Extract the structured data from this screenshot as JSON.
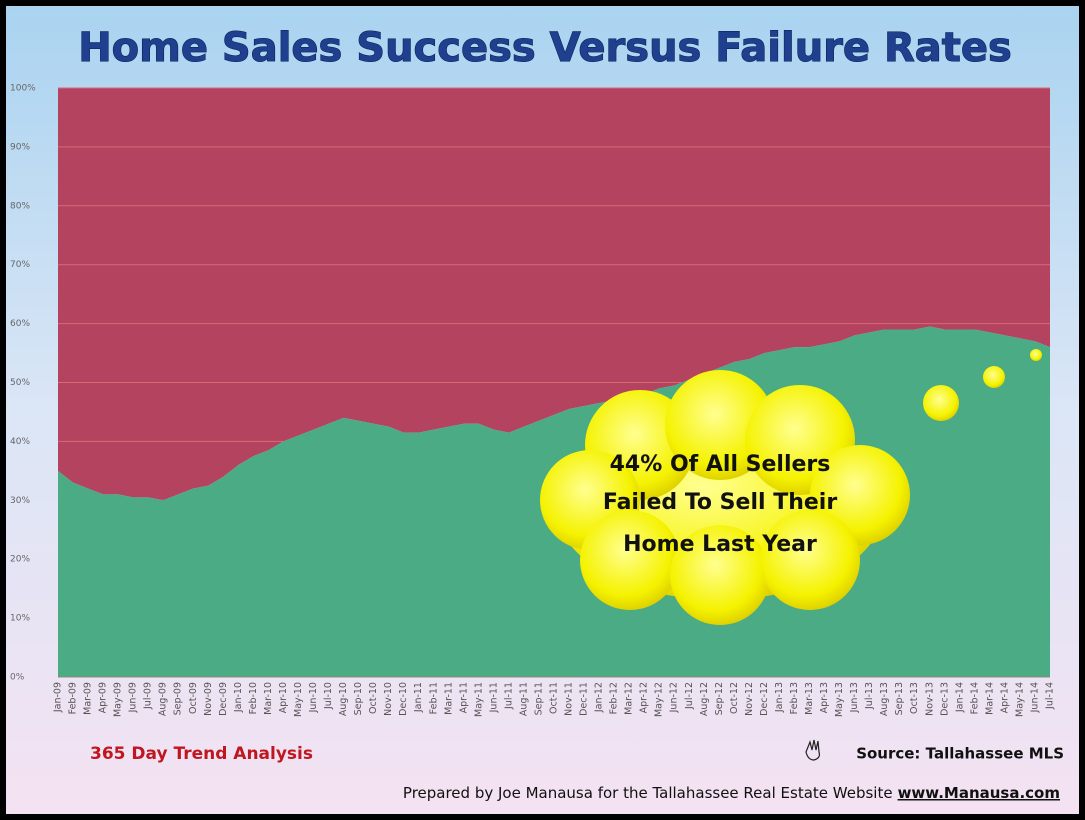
{
  "chart_data": {
    "type": "stacked-area",
    "title": "Home Sales Success Versus Failure Rates",
    "categories": [
      "Jan-09",
      "Feb-09",
      "Mar-09",
      "Apr-09",
      "May-09",
      "Jun-09",
      "Jul-09",
      "Aug-09",
      "Sep-09",
      "Oct-09",
      "Nov-09",
      "Dec-09",
      "Jan-10",
      "Feb-10",
      "Mar-10",
      "Apr-10",
      "May-10",
      "Jun-10",
      "Jul-10",
      "Aug-10",
      "Sep-10",
      "Oct-10",
      "Nov-10",
      "Dec-10",
      "Jan-11",
      "Feb-11",
      "Mar-11",
      "Apr-11",
      "May-11",
      "Jun-11",
      "Jul-11",
      "Aug-11",
      "Sep-11",
      "Oct-11",
      "Nov-11",
      "Dec-11",
      "Jan-12",
      "Feb-12",
      "Mar-12",
      "Apr-12",
      "May-12",
      "Jun-12",
      "Jul-12",
      "Aug-12",
      "Sep-12",
      "Oct-12",
      "Nov-12",
      "Dec-12",
      "Jan-13",
      "Feb-13",
      "Mar-13",
      "Apr-13",
      "May-13",
      "Jun-13",
      "Jul-13",
      "Aug-13",
      "Sep-13",
      "Oct-13",
      "Nov-13",
      "Dec-13",
      "Jan-14",
      "Feb-14",
      "Mar-14",
      "Apr-14",
      "May-14",
      "Jun-14",
      "Jul-14"
    ],
    "series": [
      {
        "color": "#4bab85",
        "values": [
          35,
          33,
          32,
          31,
          31,
          30.5,
          30.5,
          30,
          31,
          32,
          32.5,
          34,
          36,
          37.5,
          38.5,
          40,
          41,
          42,
          43,
          44,
          43.5,
          43,
          42.5,
          41.5,
          41.5,
          42,
          42.5,
          43,
          43,
          42,
          41.5,
          42.5,
          43.5,
          44.5,
          45.5,
          46,
          46.5,
          47,
          47,
          48,
          49,
          49.5,
          50.5,
          51.5,
          52.5,
          53.5,
          54,
          55,
          55.5,
          56,
          56,
          56.5,
          57,
          58,
          58.5,
          59,
          59,
          59,
          59.5,
          59,
          59,
          59,
          58.5,
          58,
          57.5,
          57,
          56
        ]
      },
      {
        "color": "#b3435f",
        "values": [
          65,
          67,
          68,
          69,
          69,
          69.5,
          69.5,
          70,
          69,
          68,
          67.5,
          66,
          64,
          62.5,
          61.5,
          60,
          59,
          58,
          57,
          56,
          56.5,
          57,
          57.5,
          58.5,
          58.5,
          58,
          57.5,
          57,
          57,
          58,
          58.5,
          57.5,
          56.5,
          55.5,
          54.5,
          54,
          53.5,
          53,
          53,
          52,
          51,
          50.5,
          49.5,
          48.5,
          47.5,
          46.5,
          46,
          45,
          44.5,
          44,
          44,
          43.5,
          43,
          42,
          41.5,
          41,
          41,
          41,
          40.5,
          41,
          41,
          41,
          41.5,
          42,
          42.5,
          43,
          44
        ]
      }
    ],
    "ylim": [
      0,
      100
    ],
    "yticks": [
      {
        "value": 0,
        "label": "0%"
      },
      {
        "value": 10,
        "label": "10%"
      },
      {
        "value": 20,
        "label": "20%"
      },
      {
        "value": 30,
        "label": "30%"
      },
      {
        "value": 40,
        "label": "40%"
      },
      {
        "value": 50,
        "label": "50%"
      },
      {
        "value": 60,
        "label": "60%"
      },
      {
        "value": 70,
        "label": "70%"
      },
      {
        "value": 80,
        "label": "80%"
      },
      {
        "value": 90,
        "label": "90%"
      },
      {
        "value": 100,
        "label": "100%"
      }
    ],
    "grid": true,
    "annotation": [
      "44% Of All Sellers",
      "Failed To Sell Their",
      "Home Last Year"
    ],
    "footer_left": "365 Day Trend Analysis",
    "source": "Source: Tallahassee MLS",
    "credit": "Prepared by Joe Manausa for the Tallahassee Real Estate Website",
    "credit_link": "www.Manausa.com"
  }
}
